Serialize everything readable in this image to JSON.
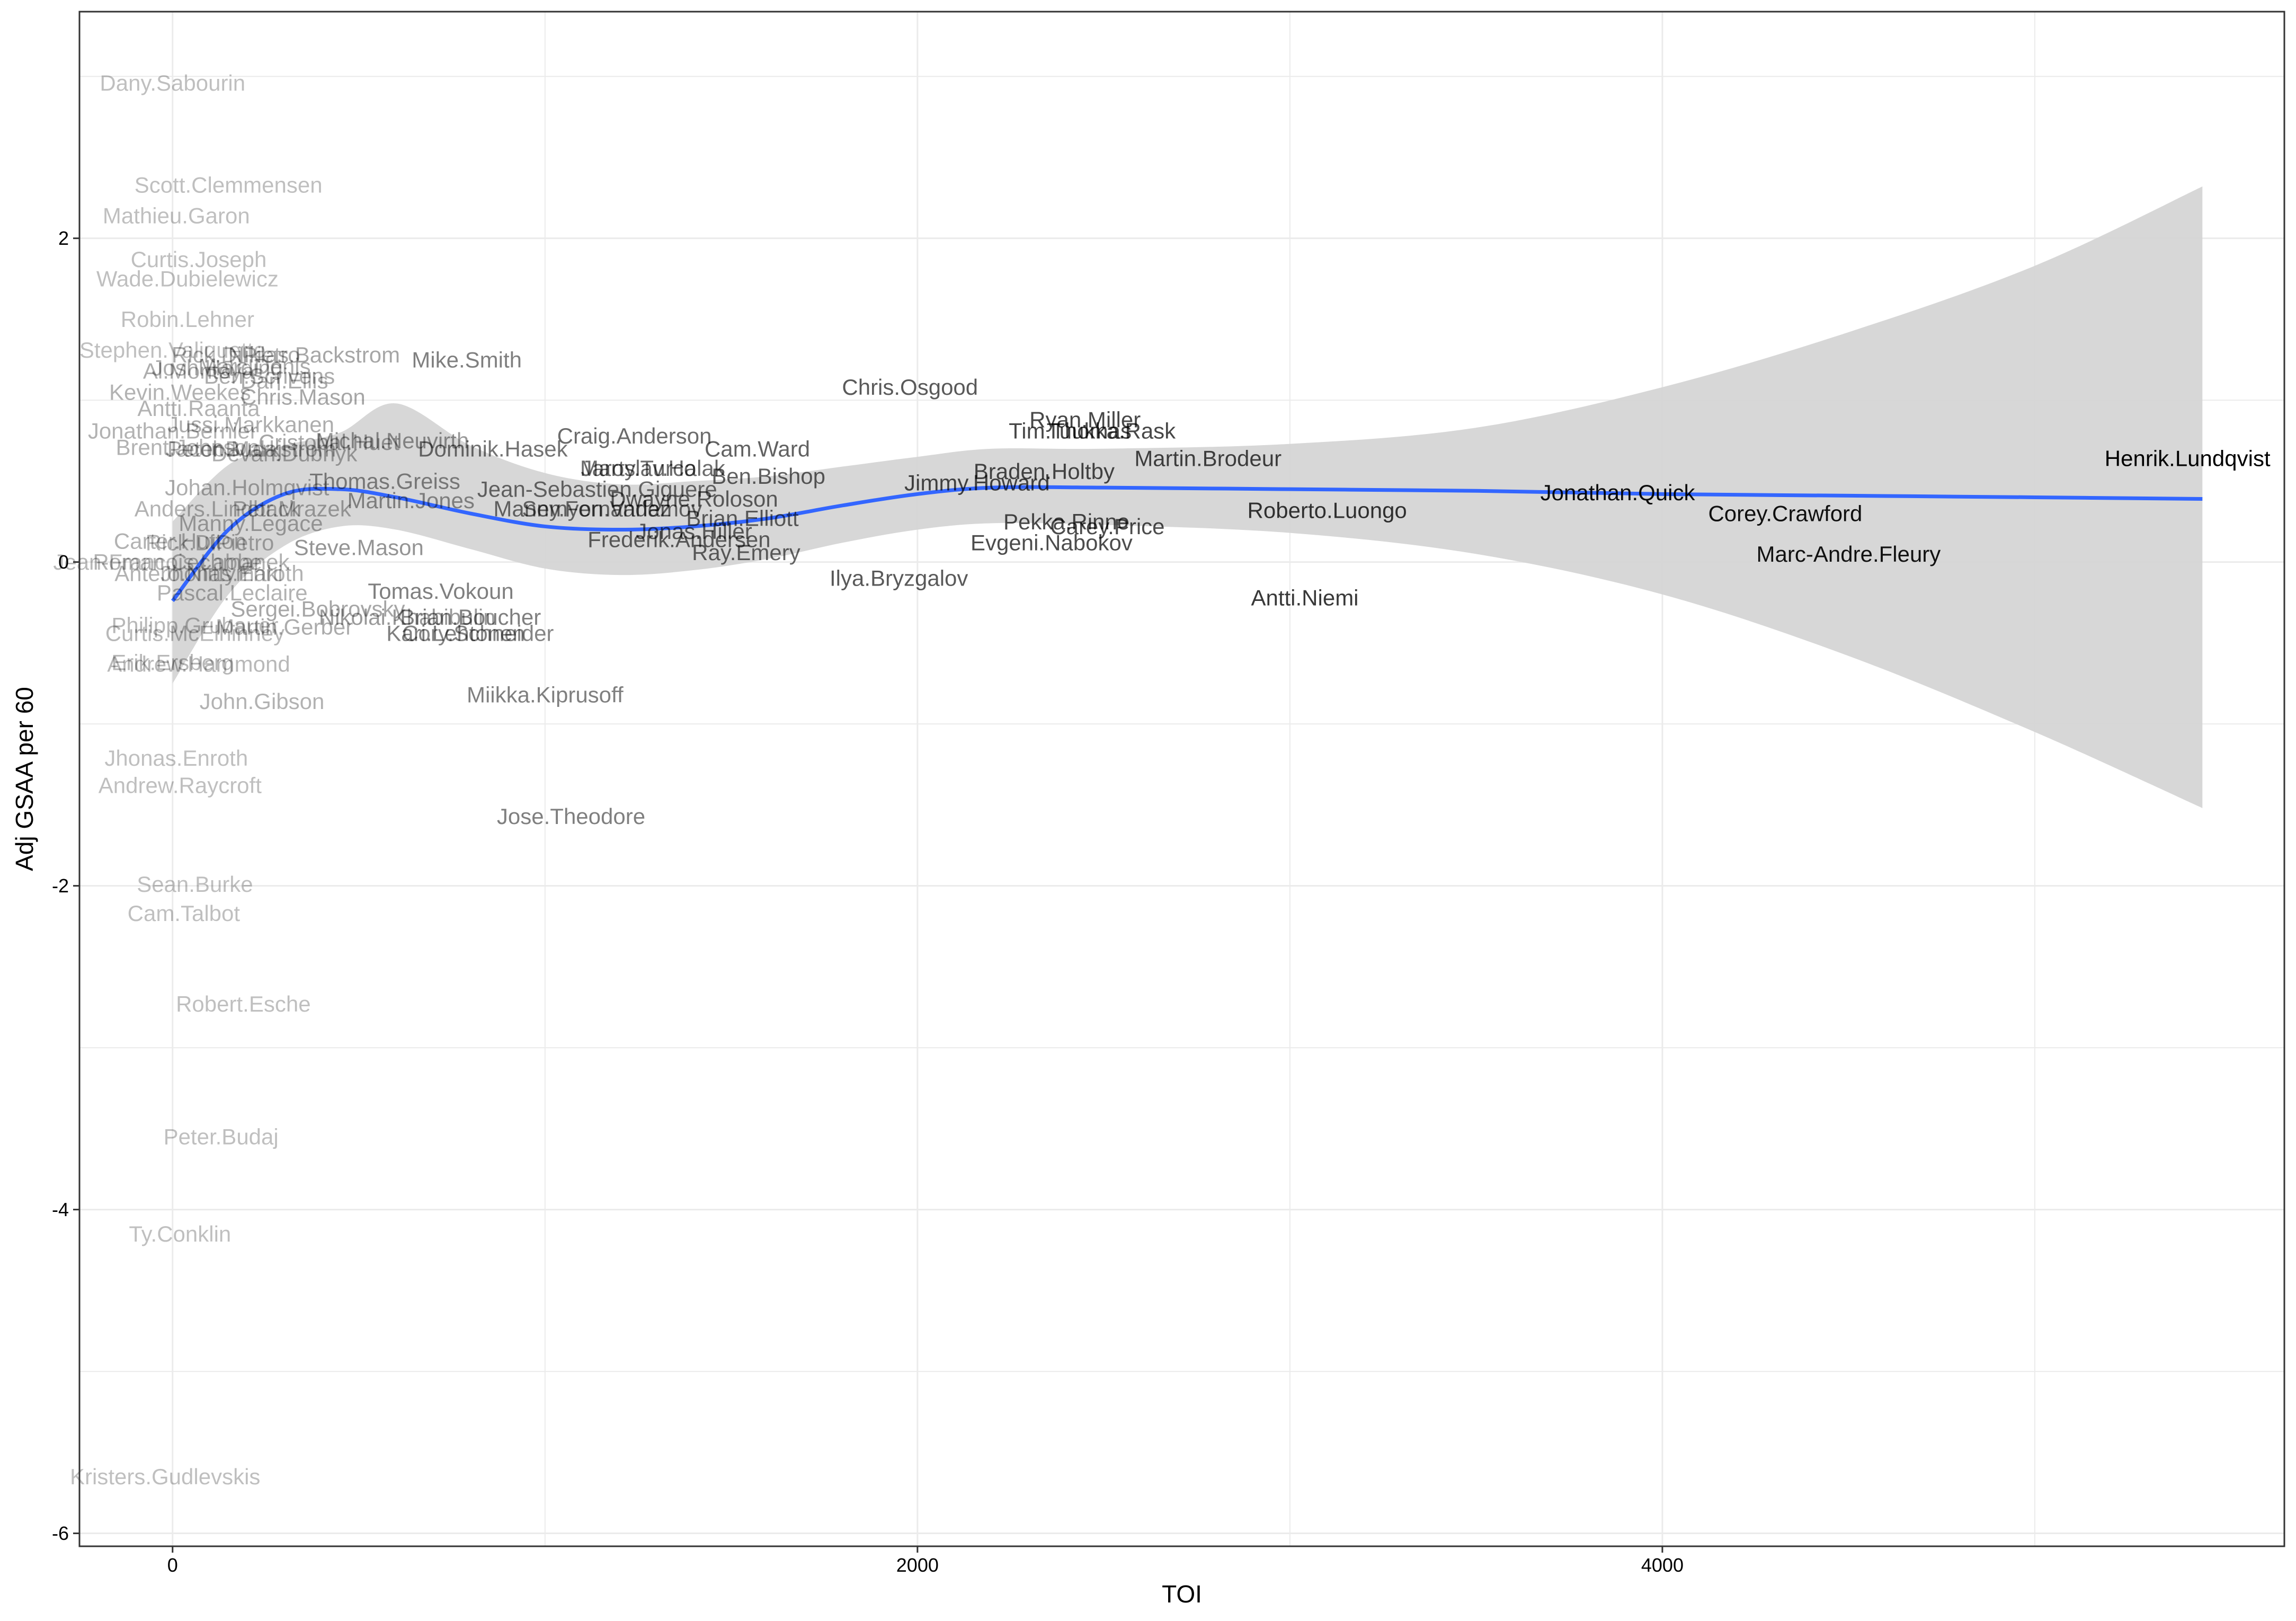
{
  "chart_data": {
    "type": "scatter",
    "title": "",
    "xlabel": "TOI",
    "ylabel": "Adj GSAA per 60",
    "xlim": [
      -250,
      5670
    ],
    "ylim": [
      -6.08,
      3.4
    ],
    "x_ticks": [
      0,
      2000,
      4000
    ],
    "x_tick_labels": [
      "0",
      "2000",
      "4000"
    ],
    "y_ticks": [
      -6,
      -4,
      -2,
      0,
      2
    ],
    "y_tick_labels": [
      "-6",
      "-4",
      "-2",
      "0",
      "2"
    ],
    "grid": true,
    "legend": "none",
    "colors": {
      "smooth_line": "#3366FF",
      "ribbon": "#d5d5d5",
      "grid": "#ebebeb",
      "panel_border": "#333333"
    },
    "smooth": {
      "x": [
        0,
        150,
        300,
        450,
        600,
        800,
        1000,
        1200,
        1400,
        1600,
        1800,
        2000,
        2200,
        2500,
        3000,
        3500,
        4000,
        4500,
        5000,
        5450
      ],
      "y": [
        -0.24,
        0.2,
        0.42,
        0.45,
        0.4,
        0.3,
        0.22,
        0.2,
        0.22,
        0.27,
        0.35,
        0.42,
        0.46,
        0.46,
        0.45,
        0.44,
        0.42,
        0.41,
        0.4,
        0.39
      ],
      "lower": [
        -0.75,
        -0.2,
        0.1,
        0.22,
        0.2,
        0.08,
        -0.04,
        -0.08,
        -0.05,
        0.02,
        0.12,
        0.2,
        0.24,
        0.23,
        0.18,
        0.05,
        -0.2,
        -0.58,
        -1.05,
        -1.52
      ],
      "upper": [
        0.25,
        0.6,
        0.72,
        0.8,
        0.98,
        0.72,
        0.55,
        0.48,
        0.5,
        0.53,
        0.59,
        0.65,
        0.7,
        0.7,
        0.73,
        0.83,
        1.08,
        1.42,
        1.83,
        2.32
      ]
    },
    "points": [
      {
        "name": "Henrik.Lundqvist",
        "x": 5410,
        "y": 0.64,
        "a": 1.0
      },
      {
        "name": "Jonathan.Quick",
        "x": 3880,
        "y": 0.43,
        "a": 0.95
      },
      {
        "name": "Corey.Crawford",
        "x": 4330,
        "y": 0.3,
        "a": 0.93
      },
      {
        "name": "Marc-Andre.Fleury",
        "x": 4500,
        "y": 0.05,
        "a": 0.92
      },
      {
        "name": "Roberto.Luongo",
        "x": 3100,
        "y": 0.32,
        "a": 0.78
      },
      {
        "name": "Antti.Niemi",
        "x": 3040,
        "y": -0.22,
        "a": 0.78
      },
      {
        "name": "Martin.Brodeur",
        "x": 2780,
        "y": 0.64,
        "a": 0.72
      },
      {
        "name": "Ryan.Miller",
        "x": 2450,
        "y": 0.88,
        "a": 0.72
      },
      {
        "name": "Tim.Thomas",
        "x": 2410,
        "y": 0.81,
        "a": 0.72
      },
      {
        "name": "Tuukka.Rask",
        "x": 2520,
        "y": 0.81,
        "a": 0.72
      },
      {
        "name": "Braden.Holtby",
        "x": 2340,
        "y": 0.56,
        "a": 0.7
      },
      {
        "name": "Jimmy.Howard",
        "x": 2160,
        "y": 0.49,
        "a": 0.7
      },
      {
        "name": "Pekka.Rinne",
        "x": 2400,
        "y": 0.25,
        "a": 0.7
      },
      {
        "name": "Carey.Price",
        "x": 2510,
        "y": 0.22,
        "a": 0.7
      },
      {
        "name": "Evgeni.Nabokov",
        "x": 2360,
        "y": 0.12,
        "a": 0.7
      },
      {
        "name": "Chris.Osgood",
        "x": 1980,
        "y": 1.08,
        "a": 0.65
      },
      {
        "name": "Ilya.Bryzgalov",
        "x": 1950,
        "y": -0.1,
        "a": 0.65
      },
      {
        "name": "Cam.Ward",
        "x": 1570,
        "y": 0.7,
        "a": 0.62
      },
      {
        "name": "Ben.Bishop",
        "x": 1600,
        "y": 0.53,
        "a": 0.62
      },
      {
        "name": "Dwayne.Roloson",
        "x": 1400,
        "y": 0.39,
        "a": 0.6
      },
      {
        "name": "Brian.Elliott",
        "x": 1530,
        "y": 0.27,
        "a": 0.6
      },
      {
        "name": "Jonas.Hiller",
        "x": 1400,
        "y": 0.19,
        "a": 0.6
      },
      {
        "name": "Ray.Emery",
        "x": 1540,
        "y": 0.06,
        "a": 0.6
      },
      {
        "name": "Frederik.Andersen",
        "x": 1360,
        "y": 0.14,
        "a": 0.6
      },
      {
        "name": "Craig.Anderson",
        "x": 1240,
        "y": 0.78,
        "a": 0.58
      },
      {
        "name": "Jaroslav.Halak",
        "x": 1290,
        "y": 0.58,
        "a": 0.58
      },
      {
        "name": "Marty.Turco",
        "x": 1250,
        "y": 0.58,
        "a": 0.58
      },
      {
        "name": "Jean-Sebastien.Giguere",
        "x": 1140,
        "y": 0.45,
        "a": 0.56
      },
      {
        "name": "Manny.Fernandez",
        "x": 1100,
        "y": 0.33,
        "a": 0.56
      },
      {
        "name": "Semyon.Varlamov",
        "x": 1180,
        "y": 0.33,
        "a": 0.56
      },
      {
        "name": "Dominik.Hasek",
        "x": 860,
        "y": 0.7,
        "a": 0.55
      },
      {
        "name": "Mike.Smith",
        "x": 790,
        "y": 1.25,
        "a": 0.5
      },
      {
        "name": "Tomas.Vokoun",
        "x": 720,
        "y": -0.18,
        "a": 0.5
      },
      {
        "name": "Brian.Boucher",
        "x": 800,
        "y": -0.34,
        "a": 0.5
      },
      {
        "name": "Kari.Lehtonen",
        "x": 760,
        "y": -0.44,
        "a": 0.5
      },
      {
        "name": "Cory.Schneider",
        "x": 820,
        "y": -0.44,
        "a": 0.48
      },
      {
        "name": "Miikka.Kiprusoff",
        "x": 1000,
        "y": -0.82,
        "a": 0.5
      },
      {
        "name": "Jose.Theodore",
        "x": 1070,
        "y": -1.57,
        "a": 0.5
      },
      {
        "name": "Nikolai.Khabibulin",
        "x": 630,
        "y": -0.34,
        "a": 0.4
      },
      {
        "name": "Thomas.Greiss",
        "x": 570,
        "y": 0.5,
        "a": 0.45
      },
      {
        "name": "Martin.Jones",
        "x": 640,
        "y": 0.38,
        "a": 0.42
      },
      {
        "name": "Michal.Neuvirth",
        "x": 590,
        "y": 0.75,
        "a": 0.4
      },
      {
        "name": "Steve.Mason",
        "x": 500,
        "y": 0.09,
        "a": 0.42
      },
      {
        "name": "Sergei.Bobrovsky",
        "x": 390,
        "y": -0.29,
        "a": 0.35
      },
      {
        "name": "Martin.Gerber",
        "x": 300,
        "y": -0.4,
        "a": 0.33
      },
      {
        "name": "Cristobal.Huet",
        "x": 420,
        "y": 0.74,
        "a": 0.35
      },
      {
        "name": "Niklas.Backstrom",
        "x": 380,
        "y": 1.28,
        "a": 0.35
      },
      {
        "name": "Chris.Mason",
        "x": 350,
        "y": 1.02,
        "a": 0.35
      },
      {
        "name": "Ben.Scrivens",
        "x": 260,
        "y": 1.15,
        "a": 0.33
      },
      {
        "name": "Dan.Ellis",
        "x": 300,
        "y": 1.12,
        "a": 0.33
      },
      {
        "name": "Marc.Denis",
        "x": 220,
        "y": 1.21,
        "a": 0.33
      },
      {
        "name": "Rick.DiPietro",
        "x": 170,
        "y": 1.28,
        "a": 0.33
      },
      {
        "name": "Josh.Harding",
        "x": 120,
        "y": 1.2,
        "a": 0.32
      },
      {
        "name": "Al.Montoya",
        "x": 70,
        "y": 1.18,
        "a": 0.32
      },
      {
        "name": "Kevin.Weekes",
        "x": 20,
        "y": 1.05,
        "a": 0.3
      },
      {
        "name": "Antti.Raanta",
        "x": 70,
        "y": 0.95,
        "a": 0.3
      },
      {
        "name": "Jussi.Markkanen",
        "x": 210,
        "y": 0.85,
        "a": 0.32
      },
      {
        "name": "Jonathan.Bernier",
        "x": 0,
        "y": 0.81,
        "a": 0.3
      },
      {
        "name": "Brent.Johnson",
        "x": 40,
        "y": 0.71,
        "a": 0.3
      },
      {
        "name": "Peter.Budaj",
        "x": 140,
        "y": 0.7,
        "a": 0.32
      },
      {
        "name": "Jacob.Markstrom",
        "x": 210,
        "y": 0.7,
        "a": 0.32
      },
      {
        "name": "Devan.Dubnyk",
        "x": 300,
        "y": 0.67,
        "a": 0.32
      },
      {
        "name": "Johan.Holmqvist",
        "x": 200,
        "y": 0.46,
        "a": 0.32
      },
      {
        "name": "Anders.Lindback",
        "x": 120,
        "y": 0.33,
        "a": 0.3
      },
      {
        "name": "Petr.Mrazek",
        "x": 320,
        "y": 0.33,
        "a": 0.32
      },
      {
        "name": "Manny.Legace",
        "x": 210,
        "y": 0.24,
        "a": 0.32
      },
      {
        "name": "Carter.Hutton",
        "x": 20,
        "y": 0.13,
        "a": 0.3
      },
      {
        "name": "Rick.DiPietro2",
        "x": 100,
        "y": 0.12,
        "a": 0.3
      },
      {
        "name": "Jean-Francois.Labbe",
        "x": -40,
        "y": 0.0,
        "a": 0.28
      },
      {
        "name": "Roman.Cechmanek",
        "x": 50,
        "y": 0.0,
        "a": 0.3
      },
      {
        "name": "Antero.Niittymaki",
        "x": 70,
        "y": -0.07,
        "a": 0.3
      },
      {
        "name": "Jhonas.Enroth2",
        "x": 160,
        "y": -0.07,
        "a": 0.3
      },
      {
        "name": "Pascal.Leclaire",
        "x": 160,
        "y": -0.19,
        "a": 0.3
      },
      {
        "name": "Philipp.Grubauer",
        "x": 60,
        "y": -0.39,
        "a": 0.28
      },
      {
        "name": "Curtis.McElhinney",
        "x": 60,
        "y": -0.44,
        "a": 0.28
      },
      {
        "name": "Erik.Ersberg",
        "x": 0,
        "y": -0.62,
        "a": 0.28
      },
      {
        "name": "Andrew.Hammond",
        "x": 70,
        "y": -0.63,
        "a": 0.28
      },
      {
        "name": "John.Gibson",
        "x": 240,
        "y": -0.86,
        "a": 0.3
      },
      {
        "name": "Dany.Sabourin",
        "x": 0,
        "y": 2.96,
        "a": 0.25
      },
      {
        "name": "Scott.Clemmensen",
        "x": 150,
        "y": 2.33,
        "a": 0.25
      },
      {
        "name": "Mathieu.Garon",
        "x": 10,
        "y": 2.14,
        "a": 0.25
      },
      {
        "name": "Curtis.Joseph",
        "x": 70,
        "y": 1.87,
        "a": 0.25
      },
      {
        "name": "Wade.Dubielewicz",
        "x": 40,
        "y": 1.75,
        "a": 0.25
      },
      {
        "name": "Robin.Lehner",
        "x": 40,
        "y": 1.5,
        "a": 0.25
      },
      {
        "name": "Stephen.Valiquette",
        "x": 0,
        "y": 1.31,
        "a": 0.25
      },
      {
        "name": "Jhonas.Enroth",
        "x": 10,
        "y": -1.21,
        "a": 0.25
      },
      {
        "name": "Andrew.Raycroft",
        "x": 20,
        "y": -1.38,
        "a": 0.25
      },
      {
        "name": "Sean.Burke",
        "x": 60,
        "y": -1.99,
        "a": 0.25
      },
      {
        "name": "Cam.Talbot",
        "x": 30,
        "y": -2.17,
        "a": 0.25
      },
      {
        "name": "Robert.Esche",
        "x": 190,
        "y": -2.73,
        "a": 0.25
      },
      {
        "name": "Peter.Budaj2",
        "x": 130,
        "y": -3.55,
        "a": 0.25
      },
      {
        "name": "Ty.Conklin",
        "x": 20,
        "y": -4.15,
        "a": 0.25
      },
      {
        "name": "Kristers.Gudlevskis",
        "x": -20,
        "y": -5.65,
        "a": 0.25
      }
    ],
    "point_text": {
      "Henrik.Lundqvist": "Henrik.Lundqvist",
      "Jonathan.Quick": "Jonathan.Quick",
      "Corey.Crawford": "Corey.Crawford",
      "Marc-Andre.Fleury": "Marc-Andre.Fleury",
      "Roberto.Luongo": "Roberto.Luongo",
      "Antti.Niemi": "Antti.Niemi",
      "Martin.Brodeur": "Martin.Brodeur",
      "Ryan.Miller": "Ryan.Miller",
      "Tim.Thomas": "Tim.Thomas",
      "Tuukka.Rask": "Tuukka.Rask",
      "Braden.Holtby": "Braden.Holtby",
      "Jimmy.Howard": "Jimmy.Howard",
      "Pekka.Rinne": "Pekka.Rinne",
      "Carey.Price": "Carey.Price",
      "Evgeni.Nabokov": "Evgeni.Nabokov",
      "Chris.Osgood": "Chris.Osgood",
      "Ilya.Bryzgalov": "Ilya.Bryzgalov",
      "Cam.Ward": "Cam.Ward",
      "Ben.Bishop": "Ben.Bishop",
      "Dwayne.Roloson": "Dwayne.Roloson",
      "Brian.Elliott": "Brian.Elliott",
      "Jonas.Hiller": "Jonas.Hiller",
      "Ray.Emery": "Ray.Emery",
      "Frederik.Andersen": "Frederik.Andersen",
      "Craig.Anderson": "Craig.Anderson",
      "Jaroslav.Halak": "Jaroslav.Halak",
      "Marty.Turco": "Marty.Turco",
      "Jean-Sebastien.Giguere": "Jean-Sebastien.Giguere",
      "Manny.Fernandez": "Manny.Fernandez",
      "Semyon.Varlamov": "Semyon.Varlamov",
      "Dominik.Hasek": "Dominik.Hasek",
      "Mike.Smith": "Mike.Smith",
      "Tomas.Vokoun": "Tomas.Vokoun",
      "Brian.Boucher": "Brian.Boucher",
      "Kari.Lehtonen": "Kari.Lehtonen",
      "Cory.Schneider": "Cory.Schneider",
      "Miikka.Kiprusoff": "Miikka.Kiprusoff",
      "Jose.Theodore": "Jose.Theodore",
      "Nikolai.Khabibulin": "Nikolai.Khabibulin",
      "Thomas.Greiss": "Thomas.Greiss",
      "Martin.Jones": "Martin.Jones",
      "Michal.Neuvirth": "Michal.Neuvirth",
      "Steve.Mason": "Steve.Mason",
      "Sergei.Bobrovsky": "Sergei.Bobrovsky",
      "Martin.Gerber": "Martin.Gerber",
      "Cristobal.Huet": "Cristobal.Huet",
      "Niklas.Backstrom": "Niklas.Backstrom",
      "Chris.Mason": "Chris.Mason",
      "Ben.Scrivens": "Ben.Scrivens",
      "Dan.Ellis": "Dan.Ellis",
      "Marc.Denis": "Marc.Denis",
      "Rick.DiPietro": "Rick.DiPietro",
      "Josh.Harding": "Josh.Harding",
      "Al.Montoya": "Al.Montoya",
      "Kevin.Weekes": "Kevin.Weekes",
      "Antti.Raanta": "Antti.Raanta",
      "Jussi.Markkanen": "Jussi.Markkanen",
      "Jonathan.Bernier": "Jonathan.Bernier",
      "Brent.Johnson": "Brent.Johnson",
      "Peter.Budaj": "Peter.Budaj",
      "Jacob.Markstrom": "Jacob.Markstrom",
      "Devan.Dubnyk": "Devan.Dubnyk",
      "Johan.Holmqvist": "Johan.Holmqvist",
      "Anders.Lindback": "Anders.Lindback",
      "Petr.Mrazek": "Petr.Mrazek",
      "Manny.Legace": "Manny.Legace",
      "Carter.Hutton": "Carter.Hutton",
      "Rick.DiPietro2": "Rick.DiPietro",
      "Jean-Francois.Labbe": "Jean-Francois.Labbe",
      "Roman.Cechmanek": "Roman.Cechmanek",
      "Antero.Niittymaki": "Antero.Niittymaki",
      "Jhonas.Enroth2": "Jhonas.Enroth",
      "Pascal.Leclaire": "Pascal.Leclaire",
      "Philipp.Grubauer": "Philipp.Grubauer",
      "Curtis.McElhinney": "Curtis.McElhinney",
      "Erik.Ersberg": "Erik.Ersberg",
      "Andrew.Hammond": "Andrew.Hammond",
      "John.Gibson": "John.Gibson",
      "Dany.Sabourin": "Dany.Sabourin",
      "Scott.Clemmensen": "Scott.Clemmensen",
      "Mathieu.Garon": "Mathieu.Garon",
      "Curtis.Joseph": "Curtis.Joseph",
      "Wade.Dubielewicz": "Wade.Dubielewicz",
      "Robin.Lehner": "Robin.Lehner",
      "Stephen.Valiquette": "Stephen.Valiquette",
      "Jhonas.Enroth": "Jhonas.Enroth",
      "Andrew.Raycroft": "Andrew.Raycroft",
      "Sean.Burke": "Sean.Burke",
      "Cam.Talbot": "Cam.Talbot",
      "Robert.Esche": "Robert.Esche",
      "Peter.Budaj2": "Peter.Budaj",
      "Ty.Conklin": "Ty.Conklin",
      "Kristers.Gudlevskis": "Kristers.Gudlevskis"
    }
  }
}
